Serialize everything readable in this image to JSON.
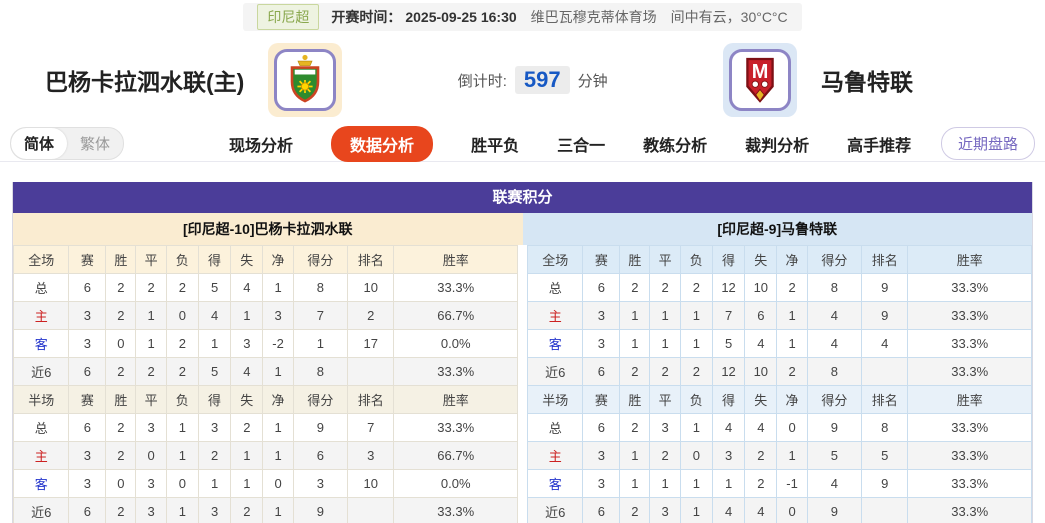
{
  "top_bar": {
    "league_badge": "印尼超",
    "kickoff_label": "开赛时间：",
    "kickoff_time": "2025-09-25 16:30",
    "venue": "维巴瓦穆克蒂体育场",
    "weather": "间中有云，30°C°C"
  },
  "header": {
    "home_team": "巴杨卡拉泗水联(主)",
    "away_team": "马鲁特联",
    "home_logo_icon": "home-team-crest-icon",
    "away_logo_icon": "away-team-crest-icon",
    "countdown_label": "倒计时:",
    "countdown_value": "597",
    "countdown_unit": "分钟"
  },
  "nav": {
    "lang_simplified": "简体",
    "lang_traditional": "繁体",
    "tabs": [
      {
        "name": "live-analysis",
        "label": "现场分析",
        "active": false
      },
      {
        "name": "data-analysis",
        "label": "数据分析",
        "active": true
      },
      {
        "name": "win-draw-loss",
        "label": "胜平负",
        "active": false
      },
      {
        "name": "three-in-one",
        "label": "三合一",
        "active": false
      },
      {
        "name": "coach-analysis",
        "label": "教练分析",
        "active": false
      },
      {
        "name": "referee-analysis",
        "label": "裁判分析",
        "active": false
      },
      {
        "name": "expert-picks",
        "label": "高手推荐",
        "active": false
      }
    ],
    "recent_button": "近期盘路"
  },
  "section": {
    "title": "联赛积分",
    "left": {
      "team_header": "[印尼超-10]巴杨卡拉泗水联",
      "full": {
        "columns": [
          "全场",
          "赛",
          "胜",
          "平",
          "负",
          "得",
          "失",
          "净",
          "得分",
          "排名",
          "胜率"
        ],
        "rows": [
          {
            "label": "总",
            "type": "total",
            "values": [
              "6",
              "2",
              "2",
              "2",
              "5",
              "4",
              "1",
              "8",
              "10",
              "33.3%"
            ]
          },
          {
            "label": "主",
            "type": "home",
            "values": [
              "3",
              "2",
              "1",
              "0",
              "4",
              "1",
              "3",
              "7",
              "2",
              "66.7%"
            ]
          },
          {
            "label": "客",
            "type": "away",
            "values": [
              "3",
              "0",
              "1",
              "2",
              "1",
              "3",
              "-2",
              "1",
              "17",
              "0.0%"
            ]
          },
          {
            "label": "近6",
            "type": "recent",
            "values": [
              "6",
              "2",
              "2",
              "2",
              "5",
              "4",
              "1",
              "8",
              "",
              "33.3%"
            ]
          }
        ]
      },
      "half": {
        "columns": [
          "半场",
          "赛",
          "胜",
          "平",
          "负",
          "得",
          "失",
          "净",
          "得分",
          "排名",
          "胜率"
        ],
        "rows": [
          {
            "label": "总",
            "type": "total",
            "values": [
              "6",
              "2",
              "3",
              "1",
              "3",
              "2",
              "1",
              "9",
              "7",
              "33.3%"
            ]
          },
          {
            "label": "主",
            "type": "home",
            "values": [
              "3",
              "2",
              "0",
              "1",
              "2",
              "1",
              "1",
              "6",
              "3",
              "66.7%"
            ]
          },
          {
            "label": "客",
            "type": "away",
            "values": [
              "3",
              "0",
              "3",
              "0",
              "1",
              "1",
              "0",
              "3",
              "10",
              "0.0%"
            ]
          },
          {
            "label": "近6",
            "type": "recent",
            "values": [
              "6",
              "2",
              "3",
              "1",
              "3",
              "2",
              "1",
              "9",
              "",
              "33.3%"
            ]
          }
        ]
      }
    },
    "right": {
      "team_header": "[印尼超-9]马鲁特联",
      "full": {
        "columns": [
          "全场",
          "赛",
          "胜",
          "平",
          "负",
          "得",
          "失",
          "净",
          "得分",
          "排名",
          "胜率"
        ],
        "rows": [
          {
            "label": "总",
            "type": "total",
            "values": [
              "6",
              "2",
              "2",
              "2",
              "12",
              "10",
              "2",
              "8",
              "9",
              "33.3%"
            ]
          },
          {
            "label": "主",
            "type": "home",
            "values": [
              "3",
              "1",
              "1",
              "1",
              "7",
              "6",
              "1",
              "4",
              "9",
              "33.3%"
            ]
          },
          {
            "label": "客",
            "type": "away",
            "values": [
              "3",
              "1",
              "1",
              "1",
              "5",
              "4",
              "1",
              "4",
              "4",
              "33.3%"
            ]
          },
          {
            "label": "近6",
            "type": "recent",
            "values": [
              "6",
              "2",
              "2",
              "2",
              "12",
              "10",
              "2",
              "8",
              "",
              "33.3%"
            ]
          }
        ]
      },
      "half": {
        "columns": [
          "半场",
          "赛",
          "胜",
          "平",
          "负",
          "得",
          "失",
          "净",
          "得分",
          "排名",
          "胜率"
        ],
        "rows": [
          {
            "label": "总",
            "type": "total",
            "values": [
              "6",
              "2",
              "3",
              "1",
              "4",
              "4",
              "0",
              "9",
              "8",
              "33.3%"
            ]
          },
          {
            "label": "主",
            "type": "home",
            "values": [
              "3",
              "1",
              "2",
              "0",
              "3",
              "2",
              "1",
              "5",
              "5",
              "33.3%"
            ]
          },
          {
            "label": "客",
            "type": "away",
            "values": [
              "3",
              "1",
              "1",
              "1",
              "1",
              "2",
              "-1",
              "4",
              "9",
              "33.3%"
            ]
          },
          {
            "label": "近6",
            "type": "recent",
            "values": [
              "6",
              "2",
              "3",
              "1",
              "4",
              "4",
              "0",
              "9",
              "",
              "33.3%"
            ]
          }
        ]
      }
    }
  },
  "colors": {
    "accent_purple": "#4b3d99",
    "active_tab_orange": "#e8461d",
    "countdown_blue": "#1759c4",
    "home_panel_cream": "#faecd1",
    "away_panel_blue": "#d6e6f4",
    "badge_green": "#8aa84e",
    "home_row_label_red": "#cc2222",
    "away_row_label_blue": "#2233cc"
  }
}
